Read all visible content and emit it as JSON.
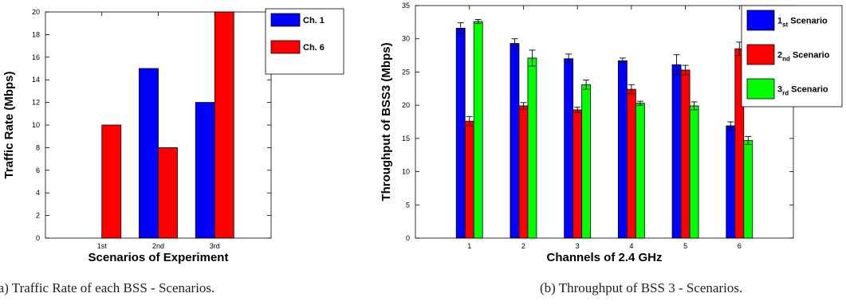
{
  "captions": {
    "a": "(a) Traffic Rate of each BSS - Scenarios.",
    "b": "(b) Throughput of BSS 3 - Scenarios."
  },
  "chart_data": [
    {
      "type": "bar",
      "title": "",
      "xlabel": "Scenarios of Experiment",
      "ylabel": "Traffic Rate (Mbps)",
      "categories": [
        "1st",
        "2nd",
        "3rd"
      ],
      "ylim": [
        0,
        20
      ],
      "yticks": [
        0,
        2,
        4,
        6,
        8,
        10,
        12,
        14,
        16,
        18,
        20
      ],
      "series": [
        {
          "name": "Ch. 1",
          "color": "#0000ff",
          "values": [
            0,
            15,
            12
          ]
        },
        {
          "name": "Ch. 6",
          "color": "#ff0000",
          "values": [
            10,
            8,
            20
          ]
        }
      ],
      "legend": "top-right",
      "grid": false
    },
    {
      "type": "bar",
      "title": "",
      "xlabel": "Channels of 2.4 GHz",
      "ylabel": "Throughput of BSS3 (Mbps)",
      "categories": [
        "1",
        "2",
        "3",
        "4",
        "5",
        "6"
      ],
      "ylim": [
        0,
        35
      ],
      "yticks": [
        0,
        5,
        10,
        15,
        20,
        25,
        30,
        35
      ],
      "series": [
        {
          "name_main": "1",
          "name_sub": "st",
          "name_rest": " Scenario",
          "color": "#0000ff",
          "values": [
            31.6,
            29.3,
            27.0,
            26.7,
            26.1,
            16.9
          ],
          "errors": [
            0.8,
            0.7,
            0.7,
            0.4,
            1.5,
            0.6
          ]
        },
        {
          "name_main": "2",
          "name_sub": "nd",
          "name_rest": " Scenario",
          "color": "#ff0000",
          "values": [
            17.6,
            19.9,
            19.3,
            22.4,
            25.3,
            28.5
          ],
          "errors": [
            0.7,
            0.5,
            0.4,
            0.7,
            0.7,
            1.0
          ]
        },
        {
          "name_main": "3",
          "name_sub": "rd",
          "name_rest": " Scenario",
          "color": "#00ff00",
          "values": [
            32.6,
            27.1,
            23.1,
            20.3,
            19.9,
            14.7
          ],
          "errors": [
            0.3,
            1.2,
            0.7,
            0.3,
            0.6,
            0.6
          ]
        }
      ],
      "legend": "top-right",
      "grid": false
    }
  ]
}
